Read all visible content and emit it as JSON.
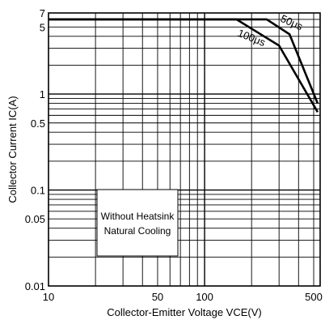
{
  "chart_data": {
    "type": "line",
    "xscale": "log",
    "yscale": "log",
    "xlim": [
      10,
      550
    ],
    "ylim": [
      0.01,
      7
    ],
    "xlabel": "Collector-Emitter Voltage VCE(V)",
    "ylabel": "Collector Current IC(A)",
    "grid": true,
    "x_major_ticks": [
      10,
      100
    ],
    "x_tick_labels": [
      {
        "value": 10,
        "label": "10"
      },
      {
        "value": 50,
        "label": "50"
      },
      {
        "value": 100,
        "label": "100"
      },
      {
        "value": 500,
        "label": "500"
      }
    ],
    "y_tick_labels": [
      {
        "value": 7,
        "label": "7"
      },
      {
        "value": 5,
        "label": "5"
      },
      {
        "value": 1,
        "label": "1"
      },
      {
        "value": 0.5,
        "label": "0.5"
      },
      {
        "value": 0.1,
        "label": "0.1"
      },
      {
        "value": 0.05,
        "label": "0.05"
      },
      {
        "value": 0.01,
        "label": "0.01"
      }
    ],
    "series": [
      {
        "name": "50μs",
        "x": [
          10,
          250,
          350,
          530
        ],
        "y": [
          6,
          6,
          4.2,
          0.8
        ]
      },
      {
        "name": "100μs",
        "x": [
          10,
          160,
          300,
          530
        ],
        "y": [
          6,
          6,
          3.2,
          0.65
        ]
      }
    ],
    "annotation": [
      "Without Heatsink",
      "Natural Cooling"
    ]
  }
}
